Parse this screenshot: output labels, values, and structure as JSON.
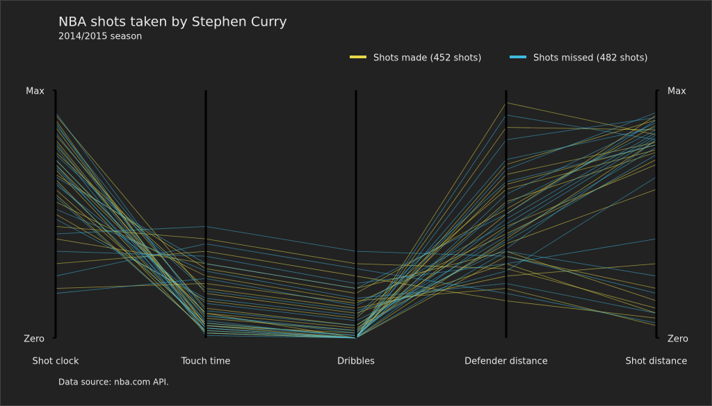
{
  "chart_data": {
    "type": "parallel",
    "title": "NBA shots taken by Stephen Curry",
    "subtitle": "2014/2015 season",
    "source": "Data source: nba.com API.",
    "categories": [
      "Shot clock",
      "Touch time",
      "Dribbles",
      "Defender distance",
      "Shot distance"
    ],
    "ylim": [
      0,
      1
    ],
    "yticks": [
      {
        "value": 0,
        "label": "Zero"
      },
      {
        "value": 1,
        "label": "Max"
      }
    ],
    "series": [
      {
        "name": "Shots made (452 shots)",
        "color": "#e6d84a",
        "lines": [
          [
            0.85,
            0.05,
            0.02,
            0.55,
            0.75
          ],
          [
            0.72,
            0.1,
            0.0,
            0.4,
            0.8
          ],
          [
            0.64,
            0.02,
            0.0,
            0.7,
            0.88
          ],
          [
            0.9,
            0.18,
            0.1,
            0.3,
            0.1
          ],
          [
            0.55,
            0.25,
            0.15,
            0.2,
            0.05
          ],
          [
            0.78,
            0.08,
            0.03,
            0.62,
            0.78
          ],
          [
            0.4,
            0.3,
            0.2,
            0.35,
            0.15
          ],
          [
            0.68,
            0.04,
            0.0,
            0.85,
            0.84
          ],
          [
            0.82,
            0.12,
            0.05,
            0.45,
            0.7
          ],
          [
            0.3,
            0.35,
            0.25,
            0.15,
            0.08
          ],
          [
            0.6,
            0.06,
            0.01,
            0.5,
            0.9
          ],
          [
            0.75,
            0.2,
            0.12,
            0.25,
            0.3
          ],
          [
            0.5,
            0.15,
            0.08,
            0.6,
            0.76
          ],
          [
            0.88,
            0.02,
            0.0,
            0.95,
            0.82
          ],
          [
            0.45,
            0.4,
            0.3,
            0.28,
            0.12
          ],
          [
            0.7,
            0.1,
            0.04,
            0.38,
            0.6
          ],
          [
            0.2,
            0.22,
            0.14,
            0.42,
            0.72
          ],
          [
            0.8,
            0.05,
            0.0,
            0.33,
            0.2
          ],
          [
            0.66,
            0.28,
            0.18,
            0.52,
            0.86
          ],
          [
            0.58,
            0.03,
            0.0,
            0.66,
            0.79
          ]
        ]
      },
      {
        "name": "Shots missed (482 shots)",
        "color": "#3fb8e0",
        "lines": [
          [
            0.83,
            0.06,
            0.01,
            0.48,
            0.83
          ],
          [
            0.7,
            0.04,
            0.0,
            0.58,
            0.87
          ],
          [
            0.62,
            0.14,
            0.07,
            0.36,
            0.8
          ],
          [
            0.91,
            0.09,
            0.02,
            0.72,
            0.85
          ],
          [
            0.52,
            0.27,
            0.16,
            0.22,
            0.1
          ],
          [
            0.77,
            0.02,
            0.0,
            0.44,
            0.81
          ],
          [
            0.35,
            0.33,
            0.22,
            0.3,
            0.4
          ],
          [
            0.69,
            0.07,
            0.0,
            0.8,
            0.89
          ],
          [
            0.86,
            0.11,
            0.05,
            0.41,
            0.77
          ],
          [
            0.25,
            0.38,
            0.28,
            0.18,
            0.06
          ],
          [
            0.63,
            0.05,
            0.01,
            0.54,
            0.84
          ],
          [
            0.74,
            0.19,
            0.11,
            0.27,
            0.65
          ],
          [
            0.48,
            0.16,
            0.09,
            0.63,
            0.78
          ],
          [
            0.87,
            0.01,
            0.0,
            0.9,
            0.8
          ],
          [
            0.42,
            0.45,
            0.35,
            0.33,
            0.18
          ],
          [
            0.72,
            0.09,
            0.03,
            0.39,
            0.74
          ],
          [
            0.18,
            0.24,
            0.13,
            0.46,
            0.82
          ],
          [
            0.79,
            0.04,
            0.0,
            0.35,
            0.25
          ],
          [
            0.65,
            0.3,
            0.2,
            0.5,
            0.88
          ],
          [
            0.57,
            0.03,
            0.0,
            0.68,
            0.91
          ]
        ]
      }
    ]
  }
}
